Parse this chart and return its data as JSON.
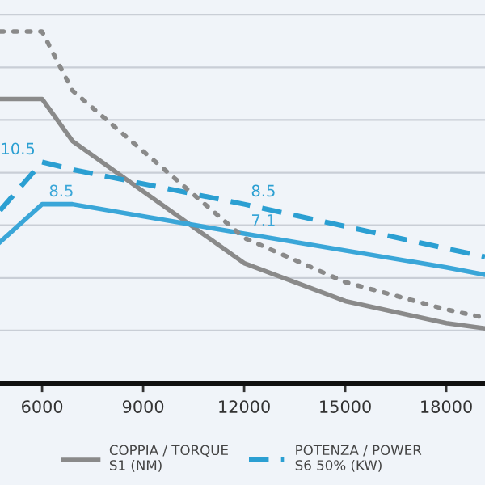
{
  "chart_data": {
    "type": "line",
    "xlim": [
      4750,
      19150
    ],
    "xticks": [
      6000,
      9000,
      12000,
      15000,
      18000
    ],
    "ylim": [
      0,
      18.2
    ],
    "yticks": [
      {
        "value": 2.5,
        "label": null
      },
      {
        "value": 5,
        "label": null
      },
      {
        "value": 7.5,
        "label": null
      },
      {
        "value": 10,
        "label": null
      },
      {
        "value": 12.5,
        "label": null
      },
      {
        "value": 15,
        "label": null
      },
      {
        "value": 17.5,
        "label": null
      }
    ],
    "tick_labels": "x",
    "grid": "y",
    "legend": "bottom",
    "series": [
      {
        "name": "COPPIA / TORQUE\nS1 (NM)",
        "color": "#8a8a8a",
        "line_style": "solid",
        "x": [
          4750,
          6000,
          6900,
          12000,
          15000,
          18000,
          19150
        ],
        "values": [
          13.5,
          13.5,
          11.5,
          5.7,
          3.9,
          2.85,
          2.6
        ]
      },
      {
        "name": "POTENZA / POWER\nS6 50% (KW)",
        "color": "#2b9fd2",
        "line_style": "dashed",
        "x": [
          4750,
          6000,
          6900,
          12000,
          18000,
          19150
        ],
        "values": [
          8.2,
          10.5,
          10.15,
          8.5,
          6.4,
          6.0
        ],
        "value_labels": [
          null,
          "10.5",
          null,
          "8.5",
          null,
          null
        ]
      },
      {
        "color": "#3aa6d8",
        "line_style": "solid",
        "x": [
          4750,
          6000,
          6900,
          12000,
          18000,
          19150
        ],
        "values": [
          6.7,
          8.5,
          8.5,
          7.1,
          5.5,
          5.15
        ],
        "value_labels": [
          null,
          "8.5",
          null,
          "7.1",
          null,
          null
        ]
      },
      {
        "color": "#8a8a8a",
        "line_style": "dotted",
        "x": [
          4750,
          6000,
          6900,
          12000,
          15000,
          18000,
          19150
        ],
        "values": [
          16.7,
          16.7,
          13.9,
          6.9,
          4.8,
          3.5,
          3.1
        ]
      }
    ]
  }
}
